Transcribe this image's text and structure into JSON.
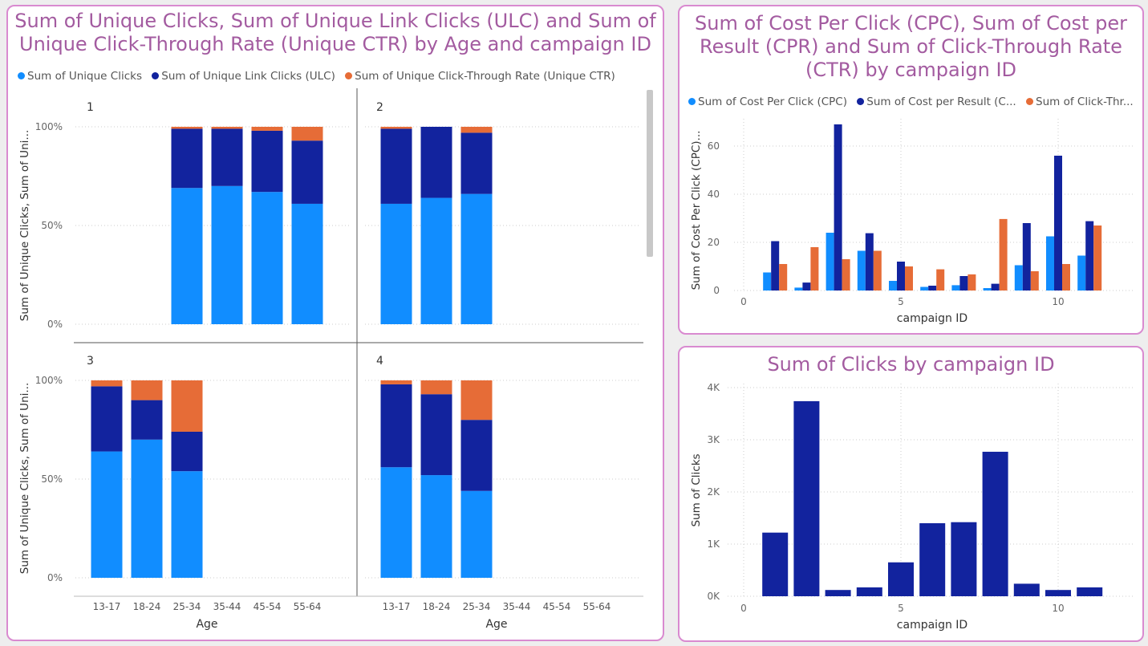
{
  "colors": {
    "unique_clicks": "#118dff",
    "ulc": "#12239e",
    "ctr": "#e66c37",
    "grid": "#cccccc",
    "title": "#a35ba0"
  },
  "panel1": {
    "title_line1": "Sum of Unique Clicks, Sum of Unique Link Clicks (ULC) and Sum of",
    "title_line2": "Unique Click-Through Rate (Unique CTR) by Age and campaign ID",
    "legend": [
      "Sum of Unique Clicks",
      "Sum of Unique Link Clicks (ULC)",
      "Sum of Unique Click-Through Rate (Unique CTR)"
    ],
    "ylabel": "Sum of Unique Clicks, Sum of Uni...",
    "xlabel": "Age"
  },
  "panel2": {
    "title_line1": "Sum of Cost Per Click (CPC), Sum of Cost per",
    "title_line2": "Result (CPR) and Sum of Click-Through Rate",
    "title_line3": "(CTR) by campaign ID",
    "legend": [
      "Sum of Cost Per Click (CPC)",
      "Sum of Cost per Result (C...",
      "Sum of Click-Thr..."
    ]
  },
  "panel3": {
    "title": "Sum of Clicks by campaign ID"
  },
  "chart_data": [
    {
      "type": "bar",
      "stacked": "percent",
      "title": "Sum of Unique Clicks, Sum of Unique Link Clicks (ULC) and Sum of Unique Click-Through Rate (Unique CTR) by Age and campaign ID",
      "xlabel": "Age",
      "ylabel": "Sum of Unique Clicks, Sum of Uni...",
      "categories": [
        "13-17",
        "18-24",
        "25-34",
        "35-44",
        "45-54",
        "55-64"
      ],
      "yticks": [
        "0%",
        "50%",
        "100%"
      ],
      "legend_position": "top-left",
      "grid": true,
      "facets": [
        {
          "label": "1",
          "unique_clicks_pct": [
            null,
            null,
            69,
            70,
            67,
            61
          ],
          "ulc_pct": [
            null,
            null,
            30,
            29,
            31,
            32
          ],
          "ctr_pct": [
            null,
            null,
            1,
            1,
            2,
            7
          ]
        },
        {
          "label": "2",
          "unique_clicks_pct": [
            61,
            64,
            66,
            null,
            null,
            null
          ],
          "ulc_pct": [
            38,
            36,
            31,
            null,
            null,
            null
          ],
          "ctr_pct": [
            1,
            0,
            3,
            null,
            null,
            null
          ]
        },
        {
          "label": "3",
          "unique_clicks_pct": [
            64,
            70,
            54,
            null,
            null,
            null
          ],
          "ulc_pct": [
            33,
            20,
            20,
            null,
            null,
            null
          ],
          "ctr_pct": [
            3,
            10,
            26,
            null,
            null,
            null
          ]
        },
        {
          "label": "4",
          "unique_clicks_pct": [
            56,
            52,
            44,
            null,
            null,
            null
          ],
          "ulc_pct": [
            42,
            41,
            36,
            null,
            null,
            null
          ],
          "ctr_pct": [
            2,
            7,
            20,
            null,
            null,
            null
          ]
        }
      ]
    },
    {
      "type": "bar",
      "title": "Sum of Cost Per Click (CPC), Sum of Cost per Result (CPR) and Sum of Click-Through Rate (CTR) by campaign ID",
      "xlabel": "campaign ID",
      "ylabel": "Sum of Cost Per Click (CPC)...",
      "x": [
        1,
        2,
        3,
        4,
        5,
        6,
        7,
        8,
        9,
        10,
        11
      ],
      "xticks": [
        0,
        5,
        10
      ],
      "yticks": [
        0,
        20,
        40,
        60
      ],
      "xlim": [
        0,
        11.5
      ],
      "ylim": [
        0,
        69
      ],
      "legend_position": "top-left",
      "grid": true,
      "series": [
        {
          "name": "Sum of Cost Per Click (CPC)",
          "values": [
            7.5,
            1.2,
            24,
            16.5,
            4,
            1.5,
            2.2,
            1,
            10.5,
            22.5,
            14.5
          ]
        },
        {
          "name": "Sum of Cost per Result (C...",
          "values": [
            20.5,
            3.3,
            69,
            23.8,
            12,
            2,
            6,
            2.8,
            28,
            56,
            28.8
          ]
        },
        {
          "name": "Sum of Click-Thr...",
          "values": [
            11,
            18,
            13,
            16.5,
            10,
            8.8,
            6.7,
            29.7,
            8,
            11,
            27
          ]
        }
      ]
    },
    {
      "type": "bar",
      "title": "Sum of Clicks by campaign ID",
      "xlabel": "campaign ID",
      "ylabel": "Sum of Clicks",
      "x": [
        1,
        2,
        3,
        4,
        5,
        6,
        7,
        8,
        9,
        10,
        11
      ],
      "xticks": [
        0,
        5,
        10
      ],
      "yticks": [
        0,
        1000,
        2000,
        3000,
        4000
      ],
      "ytick_labels": [
        "0K",
        "1K",
        "2K",
        "3K",
        "4K"
      ],
      "xlim": [
        0,
        11.5
      ],
      "ylim": [
        0,
        4000
      ],
      "grid": true,
      "values": [
        1220,
        3740,
        120,
        170,
        650,
        1400,
        1420,
        2770,
        240,
        120,
        170
      ]
    }
  ]
}
